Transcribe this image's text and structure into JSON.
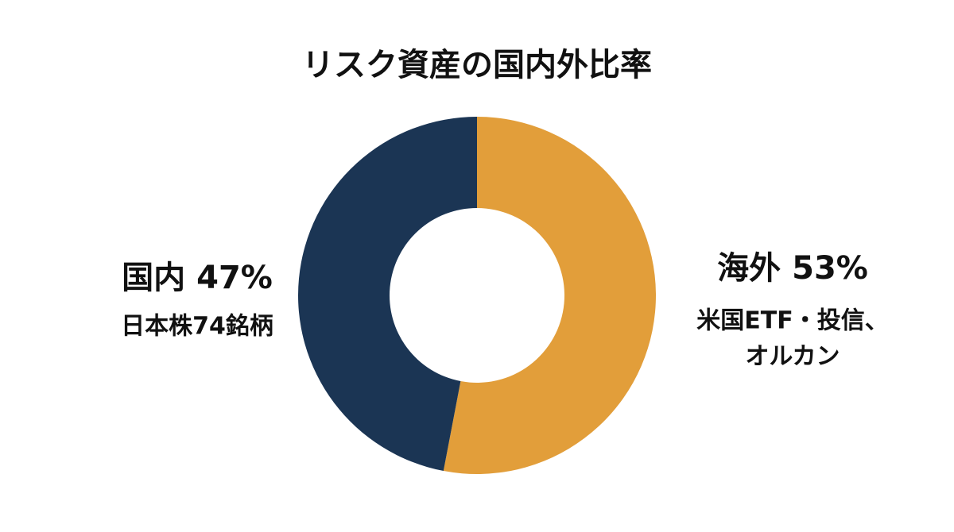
{
  "chart_data": {
    "type": "donut",
    "title": "リスク資産の国内外比率",
    "categories": [
      "海外",
      "国内"
    ],
    "values": [
      53,
      47
    ],
    "value_labels": [
      "53%",
      "47%"
    ],
    "descriptions": [
      [
        "米国ETF・投信、",
        "オルカン"
      ],
      [
        "日本株74銘柄"
      ]
    ],
    "colors": [
      "#e29e3a",
      "#1b3554"
    ]
  }
}
